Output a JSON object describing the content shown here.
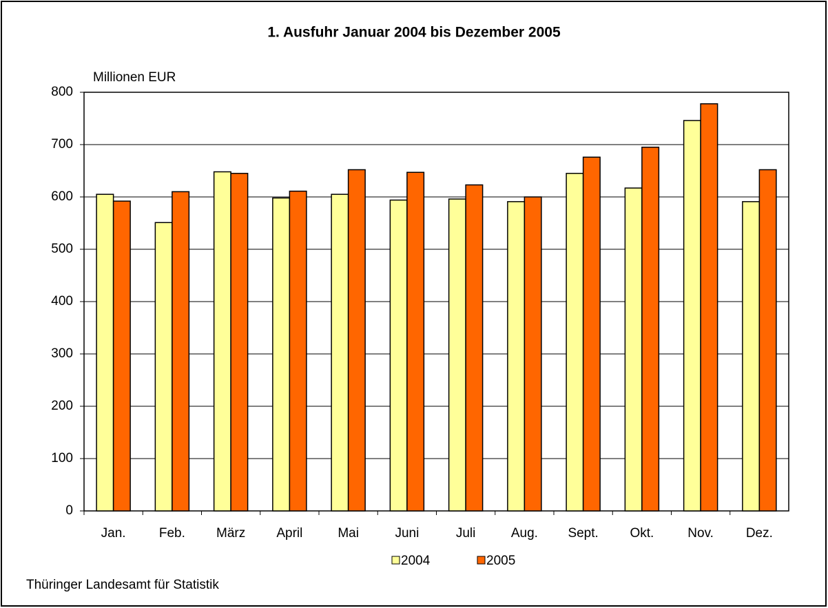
{
  "chart_data": {
    "type": "bar",
    "title": "1. Ausfuhr Januar 2004 bis Dezember 2005",
    "y_label": "Millionen EUR",
    "source": "Thüringer Landesamt für Statistik",
    "categories": [
      "Jan.",
      "Feb.",
      "März",
      "April",
      "Mai",
      "Juni",
      "Juli",
      "Aug.",
      "Sept.",
      "Okt.",
      "Nov.",
      "Dez."
    ],
    "series": [
      {
        "name": "2004",
        "color": "#ffff99",
        "values": [
          605,
          551,
          648,
          598,
          605,
          594,
          596,
          591,
          645,
          617,
          746,
          591
        ]
      },
      {
        "name": "2005",
        "color": "#ff6600",
        "values": [
          592,
          610,
          645,
          611,
          652,
          647,
          623,
          600,
          676,
          695,
          778,
          652
        ]
      }
    ],
    "ylim": [
      0,
      800
    ],
    "yticks": [
      0,
      100,
      200,
      300,
      400,
      500,
      600,
      700,
      800
    ],
    "grid": true,
    "legend": "bottom"
  }
}
